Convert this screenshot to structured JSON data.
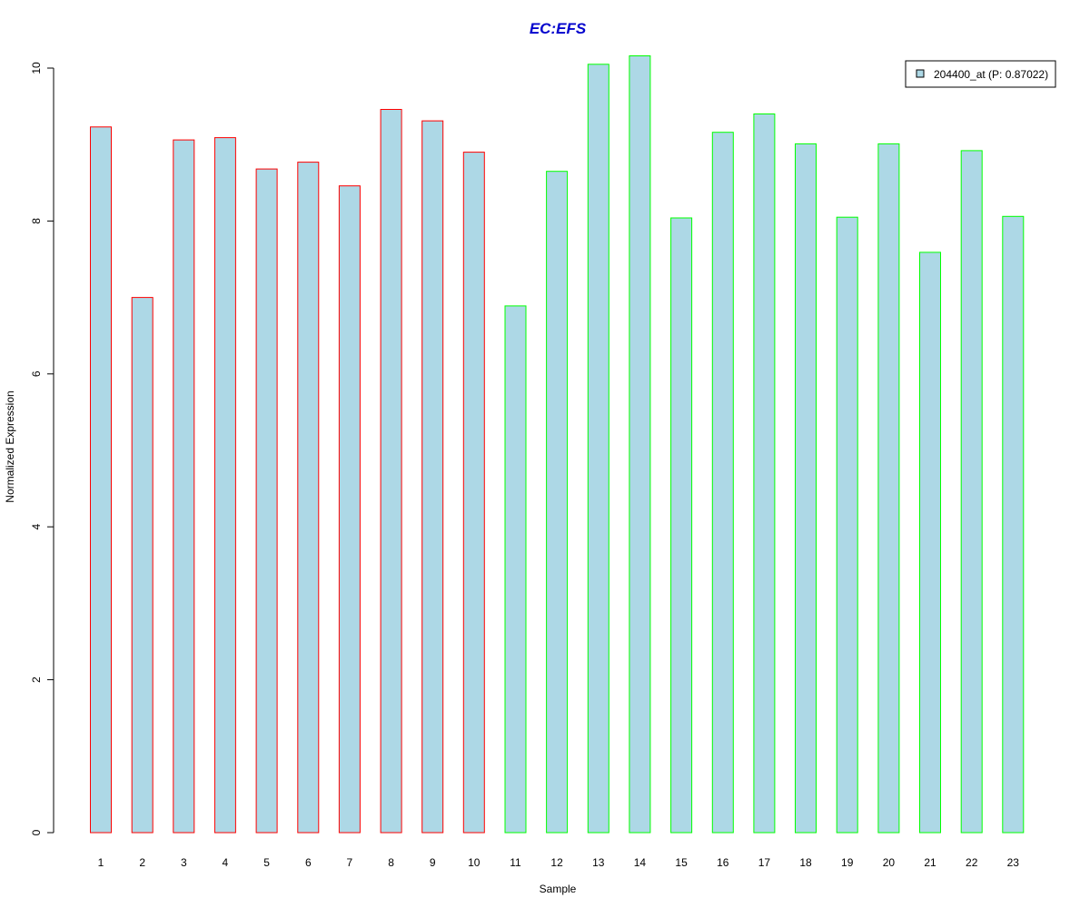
{
  "chart_data": {
    "type": "bar",
    "title": "EC:EFS",
    "xlabel": "Sample",
    "ylabel": "Normalized Expression",
    "ylim": [
      0,
      10
    ],
    "yticks": [
      0,
      2,
      4,
      6,
      8,
      10
    ],
    "categories": [
      "1",
      "2",
      "3",
      "4",
      "5",
      "6",
      "7",
      "8",
      "9",
      "10",
      "11",
      "12",
      "13",
      "14",
      "15",
      "16",
      "17",
      "18",
      "19",
      "20",
      "21",
      "22",
      "23"
    ],
    "series": [
      {
        "name": "204400_at (P: 0.87022)",
        "values": [
          9.23,
          7.0,
          9.06,
          9.09,
          8.68,
          8.77,
          8.46,
          9.46,
          9.31,
          8.9,
          6.89,
          8.65,
          10.05,
          10.16,
          8.04,
          9.16,
          9.4,
          9.01,
          8.05,
          9.01,
          7.59,
          8.92,
          8.06
        ]
      }
    ],
    "border_groups": [
      "red",
      "red",
      "red",
      "red",
      "red",
      "red",
      "red",
      "red",
      "red",
      "red",
      "green",
      "green",
      "green",
      "green",
      "green",
      "green",
      "green",
      "green",
      "green",
      "green",
      "green",
      "green",
      "green"
    ],
    "grid": false,
    "legend_position": "top-right",
    "colors": {
      "bar_fill": "#add8e6",
      "border_red": "#ff0000",
      "border_green": "#00ff00",
      "title": "#0000cd",
      "axis": "#000000"
    }
  }
}
